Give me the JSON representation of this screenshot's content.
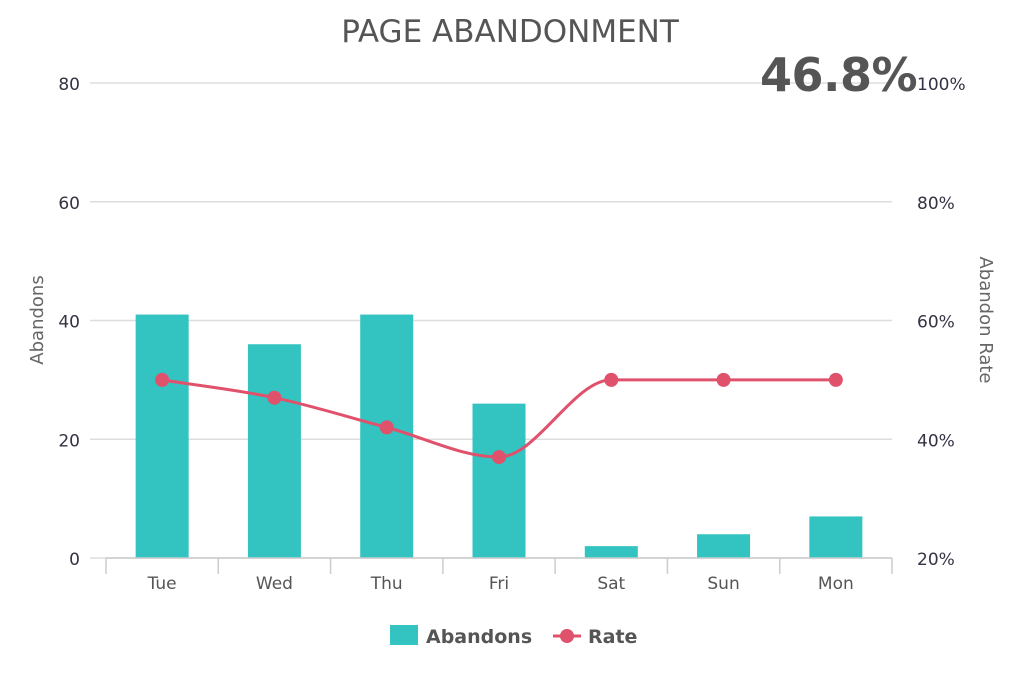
{
  "chart_data": {
    "type": "bar",
    "title": "PAGE ABANDONMENT",
    "kpi": "46.8%",
    "categories": [
      "Tue",
      "Wed",
      "Thu",
      "Fri",
      "Sat",
      "Sun",
      "Mon"
    ],
    "ylabel": "Abandons",
    "y2label": "Abandon Rate",
    "ylim": [
      0,
      80
    ],
    "y_ticks": [
      "0",
      "20",
      "40",
      "60",
      "80"
    ],
    "y2lim": [
      20,
      100
    ],
    "y2_ticks": [
      "20%",
      "40%",
      "60%",
      "80%",
      "100%"
    ],
    "grid": true,
    "legend_position": "bottom",
    "series": [
      {
        "name": "Abandons",
        "type": "bar",
        "axis": "left",
        "color": "#33c3c0",
        "values": [
          41,
          36,
          41,
          26,
          2,
          4,
          7
        ]
      },
      {
        "name": "Rate",
        "type": "line",
        "axis": "right",
        "color": "#e0516b",
        "values": [
          50,
          47,
          42,
          37,
          50,
          50,
          50
        ]
      }
    ]
  }
}
